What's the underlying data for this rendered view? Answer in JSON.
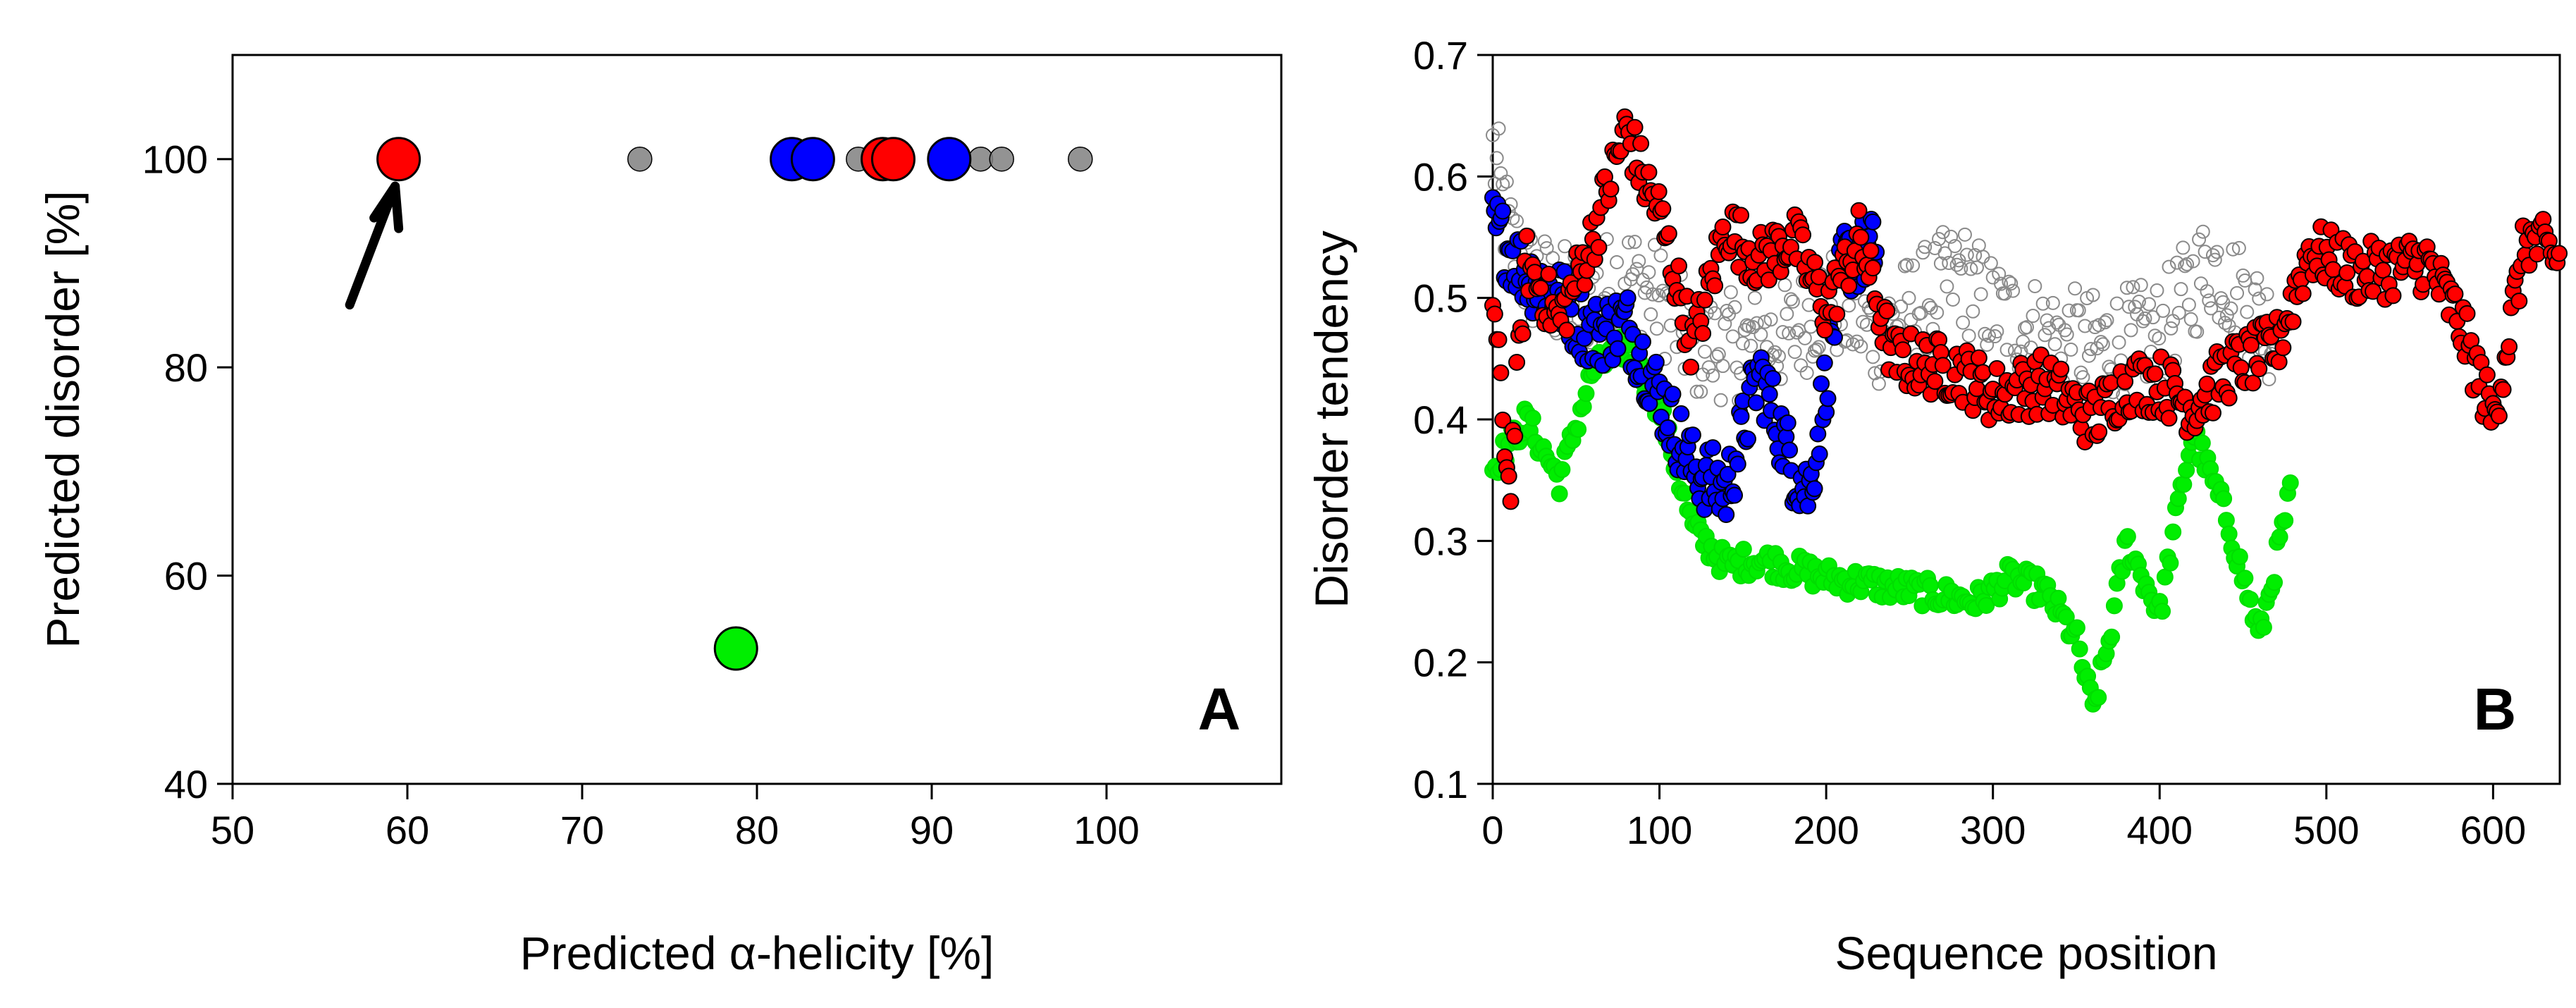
{
  "chart_data": [
    {
      "panel": "A",
      "type": "scatter",
      "panel_label": "A",
      "xlabel": "Predicted α-helicity [%]",
      "ylabel": "Predicted disorder [%]",
      "xlim": [
        50,
        110
      ],
      "ylim": [
        40,
        110
      ],
      "xticks": [
        50,
        60,
        70,
        80,
        90,
        100
      ],
      "yticks": [
        40,
        60,
        80,
        100
      ],
      "grid": false,
      "annotations": [
        {
          "type": "arrow",
          "points_to": "red point at 59.5, 100",
          "direction": "up-right"
        }
      ],
      "series": [
        {
          "name": "gray",
          "color": "#808080",
          "size": "small",
          "points": [
            [
              73.3,
              100
            ],
            [
              85.8,
              100
            ],
            [
              88.2,
              100
            ],
            [
              92.8,
              100
            ],
            [
              94,
              100
            ],
            [
              98.5,
              100
            ]
          ]
        },
        {
          "name": "blue",
          "color": "#0000ff",
          "size": "large",
          "points": [
            [
              82,
              100
            ],
            [
              83.2,
              100
            ],
            [
              91,
              100
            ]
          ]
        },
        {
          "name": "red",
          "color": "#ff0000",
          "size": "large",
          "points": [
            [
              59.5,
              100
            ],
            [
              87.2,
              100
            ],
            [
              87.8,
              100
            ]
          ]
        },
        {
          "name": "green",
          "color": "#00ee00",
          "size": "large",
          "points": [
            [
              78.8,
              53
            ]
          ]
        }
      ]
    },
    {
      "panel": "B",
      "type": "scatter",
      "panel_label": "B",
      "xlabel": "Sequence position",
      "ylabel": "Disorder tendency",
      "xlim": [
        0,
        640
      ],
      "ylim": [
        0.1,
        0.7
      ],
      "xticks": [
        0,
        100,
        200,
        300,
        400,
        500,
        600
      ],
      "yticks": [
        0.1,
        0.2,
        0.3,
        0.4,
        0.5,
        0.6,
        0.7
      ],
      "grid": false,
      "series": [
        {
          "name": "gray",
          "color": "#808080",
          "marker": "open-circle",
          "x_range": [
            0,
            470
          ],
          "profile": [
            [
              0,
              0.62
            ],
            [
              10,
              0.55
            ],
            [
              20,
              0.52
            ],
            [
              40,
              0.5
            ],
            [
              60,
              0.5
            ],
            [
              80,
              0.52
            ],
            [
              100,
              0.5
            ],
            [
              120,
              0.46
            ],
            [
              150,
              0.46
            ],
            [
              180,
              0.47
            ],
            [
              200,
              0.5
            ],
            [
              230,
              0.47
            ],
            [
              260,
              0.5
            ],
            [
              280,
              0.52
            ],
            [
              300,
              0.49
            ],
            [
              330,
              0.47
            ],
            [
              360,
              0.46
            ],
            [
              400,
              0.47
            ],
            [
              430,
              0.53
            ],
            [
              450,
              0.5
            ],
            [
              470,
              0.47
            ]
          ]
        },
        {
          "name": "green",
          "color": "#00ee00",
          "marker": "filled-circle",
          "x_range": [
            0,
            480
          ],
          "profile": [
            [
              0,
              0.36
            ],
            [
              20,
              0.4
            ],
            [
              40,
              0.35
            ],
            [
              60,
              0.44
            ],
            [
              80,
              0.46
            ],
            [
              100,
              0.41
            ],
            [
              120,
              0.31
            ],
            [
              140,
              0.28
            ],
            [
              160,
              0.285
            ],
            [
              200,
              0.27
            ],
            [
              250,
              0.26
            ],
            [
              290,
              0.25
            ],
            [
              310,
              0.27
            ],
            [
              330,
              0.26
            ],
            [
              350,
              0.22
            ],
            [
              360,
              0.16
            ],
            [
              370,
              0.22
            ],
            [
              380,
              0.3
            ],
            [
              400,
              0.24
            ],
            [
              410,
              0.32
            ],
            [
              420,
              0.39
            ],
            [
              440,
              0.32
            ],
            [
              460,
              0.22
            ],
            [
              480,
              0.35
            ]
          ]
        },
        {
          "name": "blue",
          "color": "#0000ff",
          "marker": "filled-circle",
          "x_range": [
            0,
            230
          ],
          "profile": [
            [
              0,
              0.56
            ],
            [
              20,
              0.52
            ],
            [
              40,
              0.5
            ],
            [
              60,
              0.47
            ],
            [
              80,
              0.48
            ],
            [
              100,
              0.42
            ],
            [
              120,
              0.36
            ],
            [
              140,
              0.34
            ],
            [
              160,
              0.44
            ],
            [
              180,
              0.36
            ],
            [
              190,
              0.34
            ],
            [
              210,
              0.53
            ],
            [
              230,
              0.54
            ]
          ]
        },
        {
          "name": "red",
          "color": "#ff0000",
          "marker": "filled-circle",
          "x_range": [
            0,
            640
          ],
          "profile": [
            [
              0,
              0.5
            ],
            [
              10,
              0.34
            ],
            [
              20,
              0.53
            ],
            [
              40,
              0.48
            ],
            [
              60,
              0.55
            ],
            [
              80,
              0.64
            ],
            [
              90,
              0.6
            ],
            [
              100,
              0.57
            ],
            [
              120,
              0.46
            ],
            [
              140,
              0.56
            ],
            [
              160,
              0.53
            ],
            [
              180,
              0.55
            ],
            [
              200,
              0.49
            ],
            [
              220,
              0.55
            ],
            [
              240,
              0.45
            ],
            [
              280,
              0.44
            ],
            [
              300,
              0.42
            ],
            [
              330,
              0.43
            ],
            [
              360,
              0.4
            ],
            [
              380,
              0.43
            ],
            [
              400,
              0.43
            ],
            [
              420,
              0.41
            ],
            [
              440,
              0.44
            ],
            [
              470,
              0.46
            ],
            [
              490,
              0.54
            ],
            [
              520,
              0.52
            ],
            [
              560,
              0.53
            ],
            [
              580,
              0.48
            ],
            [
              600,
              0.4
            ],
            [
              620,
              0.55
            ],
            [
              640,
              0.53
            ]
          ]
        }
      ]
    }
  ]
}
